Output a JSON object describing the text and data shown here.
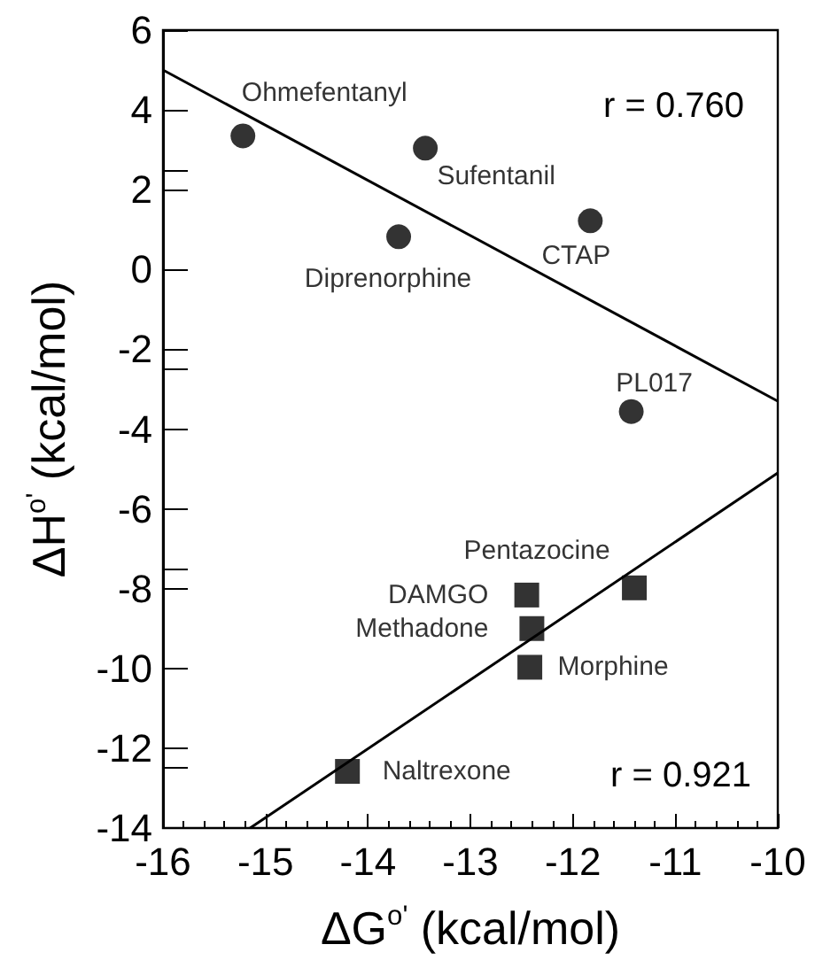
{
  "chart_data": {
    "type": "scatter",
    "xlabel": "ΔG$^{o'}$ (kcal/mol)",
    "ylabel": "ΔH$^{o'}$ (kcal/mol)",
    "xlim": [
      -16,
      -10
    ],
    "xticks": [
      -16,
      -15,
      -14,
      -13,
      -12,
      -11,
      -10
    ],
    "ylim": [
      -14,
      6
    ],
    "yticks": [
      -14,
      -12,
      -10,
      -8,
      -6,
      -4,
      -2,
      0,
      2,
      4,
      6
    ],
    "grid": false,
    "series": [
      {
        "type": "scatter",
        "marker": "circle",
        "color": "#000000",
        "x": [
          -15.22,
          -13.44,
          -13.7,
          -11.83,
          -11.43
        ],
        "values": [
          3.35,
          3.04,
          0.82,
          1.22,
          -3.56
        ]
      },
      {
        "type": "scatter",
        "marker": "square",
        "color": "#000000",
        "x": [
          -12.45,
          -12.4,
          -12.42,
          -11.4,
          -14.2
        ],
        "values": [
          -8.16,
          -9.0,
          -9.97,
          -7.98,
          -12.58
        ]
      },
      {
        "type": "line",
        "marker": "none",
        "color": "#000000",
        "x": [
          -16,
          -10
        ],
        "values": [
          5.0,
          -3.3
        ]
      },
      {
        "type": "line",
        "marker": "none",
        "color": "#000000",
        "x": [
          -15.15,
          -10
        ],
        "values": [
          -14,
          -5.1
        ]
      }
    ],
    "annotations": [
      {
        "text": "Ohmefentanyl",
        "x": -15.22,
        "y": 3.35
      },
      {
        "text": "Sufentanil",
        "x": -13.44,
        "y": 3.04
      },
      {
        "text": "Diprenorphine",
        "x": -13.7,
        "y": 0.82
      },
      {
        "text": "CTAP",
        "x": -11.83,
        "y": 1.22
      },
      {
        "text": "PL017",
        "x": -11.43,
        "y": -3.56
      },
      {
        "text": "DAMGO",
        "x": -12.45,
        "y": -8.16
      },
      {
        "text": "Methadone",
        "x": -12.4,
        "y": -9.0
      },
      {
        "text": "Morphine",
        "x": -12.42,
        "y": -9.97
      },
      {
        "text": "Pentazocine",
        "x": -11.4,
        "y": -7.98
      },
      {
        "text": "Naltrexone",
        "x": -14.2,
        "y": -12.58
      },
      "r = 0.760",
      "r = 0.921"
    ]
  }
}
